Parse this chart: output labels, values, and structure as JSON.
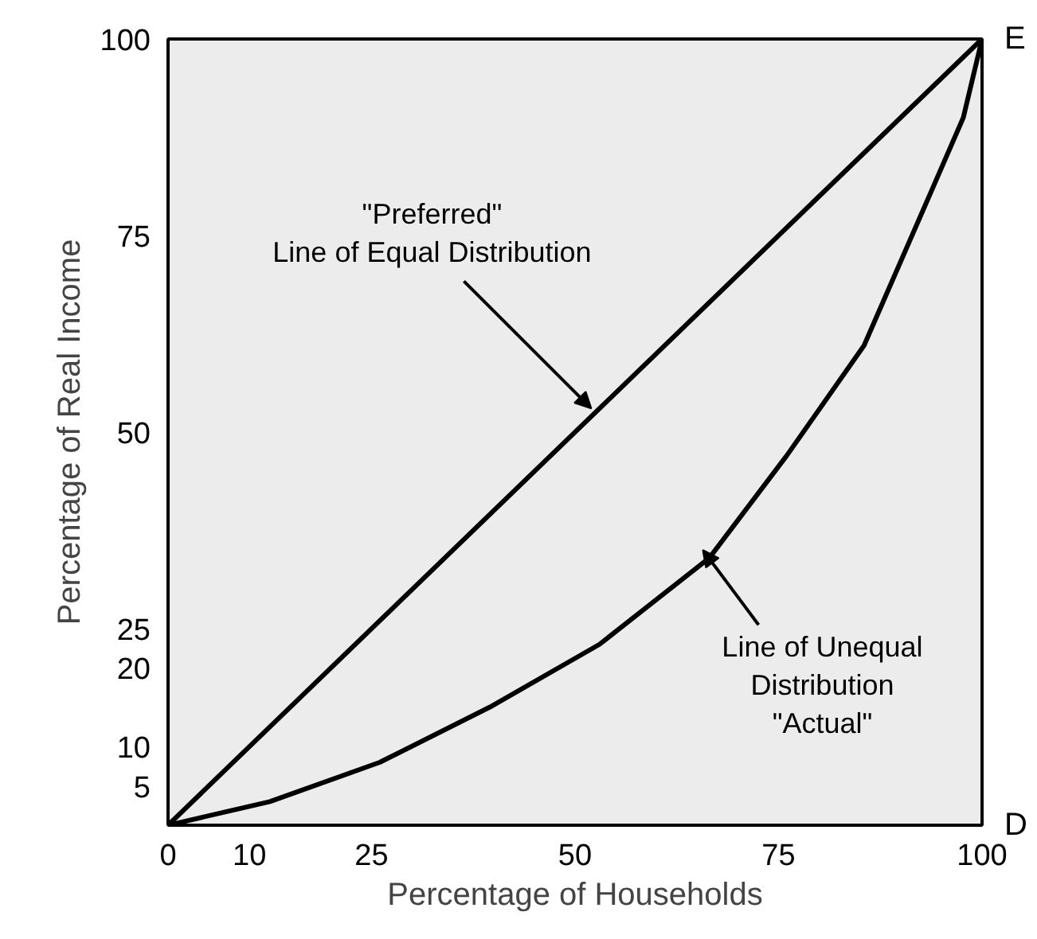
{
  "chart_data": {
    "type": "line",
    "xlabel": "Percentage of Households",
    "ylabel": "Percentage of Real Income",
    "xlim": [
      0,
      100
    ],
    "ylim": [
      0,
      100
    ],
    "xticks": [
      0,
      10,
      25,
      50,
      75,
      100
    ],
    "yticks": [
      5,
      10,
      20,
      25,
      50,
      75,
      100
    ],
    "grid": false,
    "marker": "none",
    "line_style": "solid",
    "series": [
      {
        "x": [
          0,
          100
        ],
        "values": [
          0,
          100
        ],
        "color": "#000000"
      },
      {
        "x": [
          0,
          12.5,
          26,
          39.5,
          53,
          66.5,
          76,
          85.5,
          93.5,
          97.7,
          100
        ],
        "values": [
          0,
          3,
          8,
          15,
          23,
          34,
          47,
          61,
          80,
          90,
          100
        ],
        "color": "#000000"
      }
    ],
    "annotations": [
      {
        "text": "\"Preferred\"\nLine of Equal Distribution",
        "x": 52,
        "y": 53
      },
      {
        "text": "Line of Unequal\nDistribution\n\"Actual\"",
        "x": 65.7,
        "y": 35
      },
      "D",
      "E"
    ]
  }
}
